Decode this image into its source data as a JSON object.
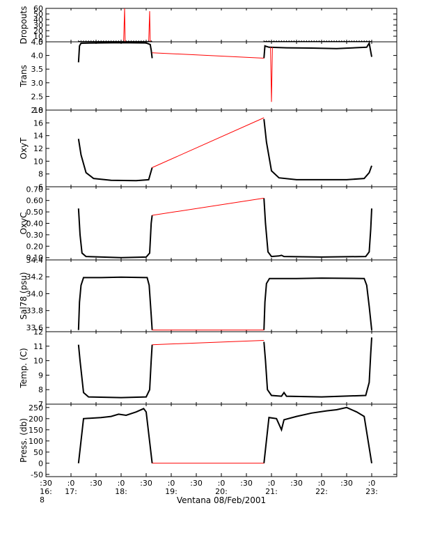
{
  "chart_data": {
    "type": "line",
    "source_label": "Ventana 08/Feb/2001",
    "x_axis": {
      "unit": "hours",
      "range": [
        16.5,
        23.5
      ],
      "ticks": [
        {
          "x": 16.5,
          "line1": ":30",
          "line2": "16:",
          "line3": "8"
        },
        {
          "x": 17.0,
          "line1": ":0",
          "line2": "17:",
          "line3": ""
        },
        {
          "x": 17.5,
          "line1": ":30",
          "line2": "",
          "line3": ""
        },
        {
          "x": 18.0,
          "line1": ":0",
          "line2": "18:",
          "line3": ""
        },
        {
          "x": 18.5,
          "line1": ":30",
          "line2": "",
          "line3": ""
        },
        {
          "x": 19.0,
          "line1": ":0",
          "line2": "19:",
          "line3": ""
        },
        {
          "x": 19.5,
          "line1": ":30",
          "line2": "",
          "line3": ""
        },
        {
          "x": 20.0,
          "line1": ":0",
          "line2": "20:",
          "line3": ""
        },
        {
          "x": 20.5,
          "line1": ":30",
          "line2": "",
          "line3": ""
        },
        {
          "x": 21.0,
          "line1": ":0",
          "line2": "21:",
          "line3": ""
        },
        {
          "x": 21.5,
          "line1": ":30",
          "line2": "",
          "line3": ""
        },
        {
          "x": 22.0,
          "line1": ":0",
          "line2": "22:",
          "line3": ""
        },
        {
          "x": 22.5,
          "line1": ":30",
          "line2": "",
          "line3": ""
        },
        {
          "x": 23.0,
          "line1": ":0",
          "line2": "23:",
          "line3": ""
        }
      ]
    },
    "colors": {
      "measured": "#000000",
      "interpolated": "#ff0000"
    },
    "panels": [
      {
        "id": "dropouts",
        "ylabel": "Dropouts",
        "ylim": [
          0,
          60
        ],
        "yticks": [
          {
            "v": 60,
            "label": "60"
          },
          {
            "v": 50,
            "label": "50"
          },
          {
            "v": 40,
            "label": "40"
          },
          {
            "v": 30,
            "label": "30"
          },
          {
            "v": 20,
            "label": "20"
          },
          {
            "v": 10,
            "label": "10"
          },
          {
            "v": 0,
            "label": "0"
          }
        ],
        "black": [
          [
            [
              17.15,
              0
            ],
            [
              18.62,
              0
            ]
          ],
          [
            [
              20.85,
              0
            ],
            [
              23.0,
              0
            ]
          ]
        ],
        "red": [
          [
            [
              17.15,
              0
            ],
            [
              18.05,
              0
            ],
            [
              18.07,
              60
            ],
            [
              18.08,
              0
            ],
            [
              18.55,
              0
            ],
            [
              18.57,
              55
            ],
            [
              18.58,
              0
            ],
            [
              18.62,
              0
            ],
            [
              20.85,
              -3
            ],
            [
              23.0,
              0
            ]
          ]
        ],
        "markers": {
          "type": "plus",
          "ranges": [
            [
              17.15,
              18.62
            ],
            [
              20.85,
              23.0
            ]
          ],
          "step": 0.05,
          "y": 0
        }
      },
      {
        "id": "trans",
        "ylabel": "Trans",
        "ylim": [
          2.0,
          4.5
        ],
        "yticks": [
          {
            "v": 4.5,
            "label": "4.5"
          },
          {
            "v": 4.0,
            "label": "4.0"
          },
          {
            "v": 3.5,
            "label": "3.5"
          },
          {
            "v": 3.0,
            "label": "3.0"
          },
          {
            "v": 2.5,
            "label": "2.5"
          },
          {
            "v": 2.0,
            "label": "2.0"
          }
        ],
        "black": [
          [
            [
              17.15,
              3.75
            ],
            [
              17.17,
              4.35
            ],
            [
              17.2,
              4.45
            ],
            [
              17.5,
              4.46
            ],
            [
              18.0,
              4.47
            ],
            [
              18.5,
              4.46
            ],
            [
              18.58,
              4.4
            ],
            [
              18.6,
              4.2
            ],
            [
              18.62,
              3.9
            ]
          ],
          [
            [
              20.85,
              3.9
            ],
            [
              20.87,
              4.35
            ],
            [
              20.95,
              4.3
            ],
            [
              21.3,
              4.28
            ],
            [
              21.8,
              4.27
            ],
            [
              22.3,
              4.25
            ],
            [
              22.9,
              4.3
            ],
            [
              22.95,
              4.45
            ],
            [
              23.0,
              3.95
            ]
          ]
        ],
        "red": [
          [
            [
              18.62,
              4.1
            ],
            [
              20.85,
              3.9
            ]
          ],
          [
            [
              20.98,
              4.3
            ],
            [
              21.0,
              2.3
            ],
            [
              21.02,
              4.3
            ]
          ]
        ],
        "markers": null
      },
      {
        "id": "oxyt",
        "ylabel": "OxyT",
        "ylim": [
          6,
          18
        ],
        "yticks": [
          {
            "v": 18,
            "label": "18"
          },
          {
            "v": 16,
            "label": "16"
          },
          {
            "v": 14,
            "label": "14"
          },
          {
            "v": 12,
            "label": "12"
          },
          {
            "v": 10,
            "label": "10"
          },
          {
            "v": 8,
            "label": "8"
          },
          {
            "v": 6,
            "label": "6"
          }
        ],
        "black": [
          [
            [
              17.15,
              13.5
            ],
            [
              17.2,
              11.0
            ],
            [
              17.3,
              8.2
            ],
            [
              17.45,
              7.3
            ],
            [
              17.8,
              7.0
            ],
            [
              18.3,
              6.95
            ],
            [
              18.55,
              7.1
            ],
            [
              18.62,
              9.0
            ]
          ],
          [
            [
              20.85,
              16.6
            ],
            [
              20.9,
              13.0
            ],
            [
              21.0,
              8.5
            ],
            [
              21.15,
              7.4
            ],
            [
              21.5,
              7.1
            ],
            [
              22.5,
              7.1
            ],
            [
              22.85,
              7.3
            ],
            [
              22.95,
              8.2
            ],
            [
              23.0,
              9.3
            ]
          ]
        ],
        "red": [
          [
            [
              18.62,
              9.0
            ],
            [
              20.85,
              16.8
            ]
          ]
        ],
        "markers": null
      },
      {
        "id": "oxyc",
        "ylabel": "OxyC",
        "ylim": [
          0.08,
          0.72
        ],
        "yticks": [
          {
            "v": 0.7,
            "label": "0.70"
          },
          {
            "v": 0.6,
            "label": "0.60"
          },
          {
            "v": 0.5,
            "label": "0.50"
          },
          {
            "v": 0.4,
            "label": "0.40"
          },
          {
            "v": 0.3,
            "label": "0.30"
          },
          {
            "v": 0.2,
            "label": "0.20"
          },
          {
            "v": 0.1,
            "label": "0.10"
          }
        ],
        "black": [
          [
            [
              17.15,
              0.53
            ],
            [
              17.18,
              0.3
            ],
            [
              17.22,
              0.14
            ],
            [
              17.3,
              0.11
            ],
            [
              18.0,
              0.1
            ],
            [
              18.5,
              0.105
            ],
            [
              18.57,
              0.14
            ],
            [
              18.6,
              0.4
            ],
            [
              18.62,
              0.47
            ]
          ],
          [
            [
              20.85,
              0.62
            ],
            [
              20.88,
              0.4
            ],
            [
              20.93,
              0.15
            ],
            [
              21.0,
              0.11
            ],
            [
              21.15,
              0.115
            ],
            [
              21.2,
              0.12
            ],
            [
              21.25,
              0.11
            ],
            [
              22.0,
              0.105
            ],
            [
              22.88,
              0.11
            ],
            [
              22.95,
              0.15
            ],
            [
              22.98,
              0.35
            ],
            [
              23.0,
              0.53
            ]
          ]
        ],
        "red": [
          [
            [
              18.62,
              0.47
            ],
            [
              20.85,
              0.62
            ]
          ]
        ],
        "markers": null
      },
      {
        "id": "sal",
        "ylabel": "Sal78 (psu)",
        "ylim": [
          33.55,
          34.4
        ],
        "yticks": [
          {
            "v": 34.4,
            "label": "34.4"
          },
          {
            "v": 34.2,
            "label": "34.2"
          },
          {
            "v": 34.0,
            "label": "34.0"
          },
          {
            "v": 33.8,
            "label": "33.8"
          },
          {
            "v": 33.6,
            "label": "33.6"
          }
        ],
        "black": [
          [
            [
              17.15,
              33.57
            ],
            [
              17.17,
              33.9
            ],
            [
              17.2,
              34.1
            ],
            [
              17.25,
              34.19
            ],
            [
              17.6,
              34.19
            ],
            [
              18.0,
              34.195
            ],
            [
              18.52,
              34.19
            ],
            [
              18.56,
              34.1
            ],
            [
              18.6,
              33.75
            ],
            [
              18.62,
              33.57
            ]
          ],
          [
            [
              20.85,
              33.57
            ],
            [
              20.87,
              33.9
            ],
            [
              20.9,
              34.12
            ],
            [
              20.96,
              34.18
            ],
            [
              21.5,
              34.18
            ],
            [
              22.0,
              34.185
            ],
            [
              22.85,
              34.18
            ],
            [
              22.9,
              34.1
            ],
            [
              22.95,
              33.85
            ],
            [
              23.0,
              33.57
            ]
          ]
        ],
        "red": [
          [
            [
              18.62,
              33.57
            ],
            [
              20.85,
              33.57
            ]
          ]
        ],
        "markers": null
      },
      {
        "id": "temp",
        "ylabel": "Temp. (C)",
        "ylim": [
          7,
          12
        ],
        "yticks": [
          {
            "v": 12,
            "label": "12"
          },
          {
            "v": 11,
            "label": "11"
          },
          {
            "v": 10,
            "label": "10"
          },
          {
            "v": 9,
            "label": "9"
          },
          {
            "v": 8,
            "label": "8"
          },
          {
            "v": 7,
            "label": "7"
          }
        ],
        "black": [
          [
            [
              17.15,
              11.1
            ],
            [
              17.18,
              10.0
            ],
            [
              17.25,
              7.8
            ],
            [
              17.35,
              7.5
            ],
            [
              18.0,
              7.45
            ],
            [
              18.5,
              7.5
            ],
            [
              18.57,
              8.0
            ],
            [
              18.6,
              10.0
            ],
            [
              18.62,
              11.1
            ]
          ],
          [
            [
              20.85,
              11.3
            ],
            [
              20.88,
              10.0
            ],
            [
              20.92,
              8.0
            ],
            [
              21.0,
              7.6
            ],
            [
              21.2,
              7.55
            ],
            [
              21.25,
              7.8
            ],
            [
              21.3,
              7.55
            ],
            [
              22.0,
              7.5
            ],
            [
              22.88,
              7.6
            ],
            [
              22.95,
              8.5
            ],
            [
              22.98,
              10.5
            ],
            [
              23.0,
              11.6
            ]
          ]
        ],
        "red": [
          [
            [
              18.62,
              11.1
            ],
            [
              20.85,
              11.4
            ]
          ]
        ],
        "markers": null
      },
      {
        "id": "press",
        "ylabel": "Press. (db)",
        "ylim": [
          -60,
          265
        ],
        "yticks": [
          {
            "v": 250,
            "label": "250"
          },
          {
            "v": 200,
            "label": "200"
          },
          {
            "v": 150,
            "label": "150"
          },
          {
            "v": 100,
            "label": "100"
          },
          {
            "v": 50,
            "label": "50"
          },
          {
            "v": 0,
            "label": "0"
          },
          {
            "v": -50,
            "label": "-50"
          }
        ],
        "black": [
          [
            [
              17.15,
              0
            ],
            [
              17.25,
              200
            ],
            [
              17.6,
              205
            ],
            [
              17.8,
              210
            ],
            [
              17.95,
              220
            ],
            [
              18.1,
              215
            ],
            [
              18.3,
              230
            ],
            [
              18.45,
              245
            ],
            [
              18.5,
              230
            ],
            [
              18.62,
              0
            ]
          ],
          [
            [
              20.85,
              0
            ],
            [
              20.95,
              205
            ],
            [
              21.1,
              200
            ],
            [
              21.2,
              150
            ],
            [
              21.25,
              195
            ],
            [
              21.5,
              210
            ],
            [
              21.8,
              225
            ],
            [
              22.1,
              235
            ],
            [
              22.3,
              240
            ],
            [
              22.5,
              250
            ],
            [
              22.7,
              230
            ],
            [
              22.85,
              210
            ],
            [
              23.0,
              0
            ]
          ]
        ],
        "red": [
          [
            [
              18.62,
              0
            ],
            [
              20.85,
              0
            ]
          ]
        ],
        "markers": null
      }
    ]
  }
}
